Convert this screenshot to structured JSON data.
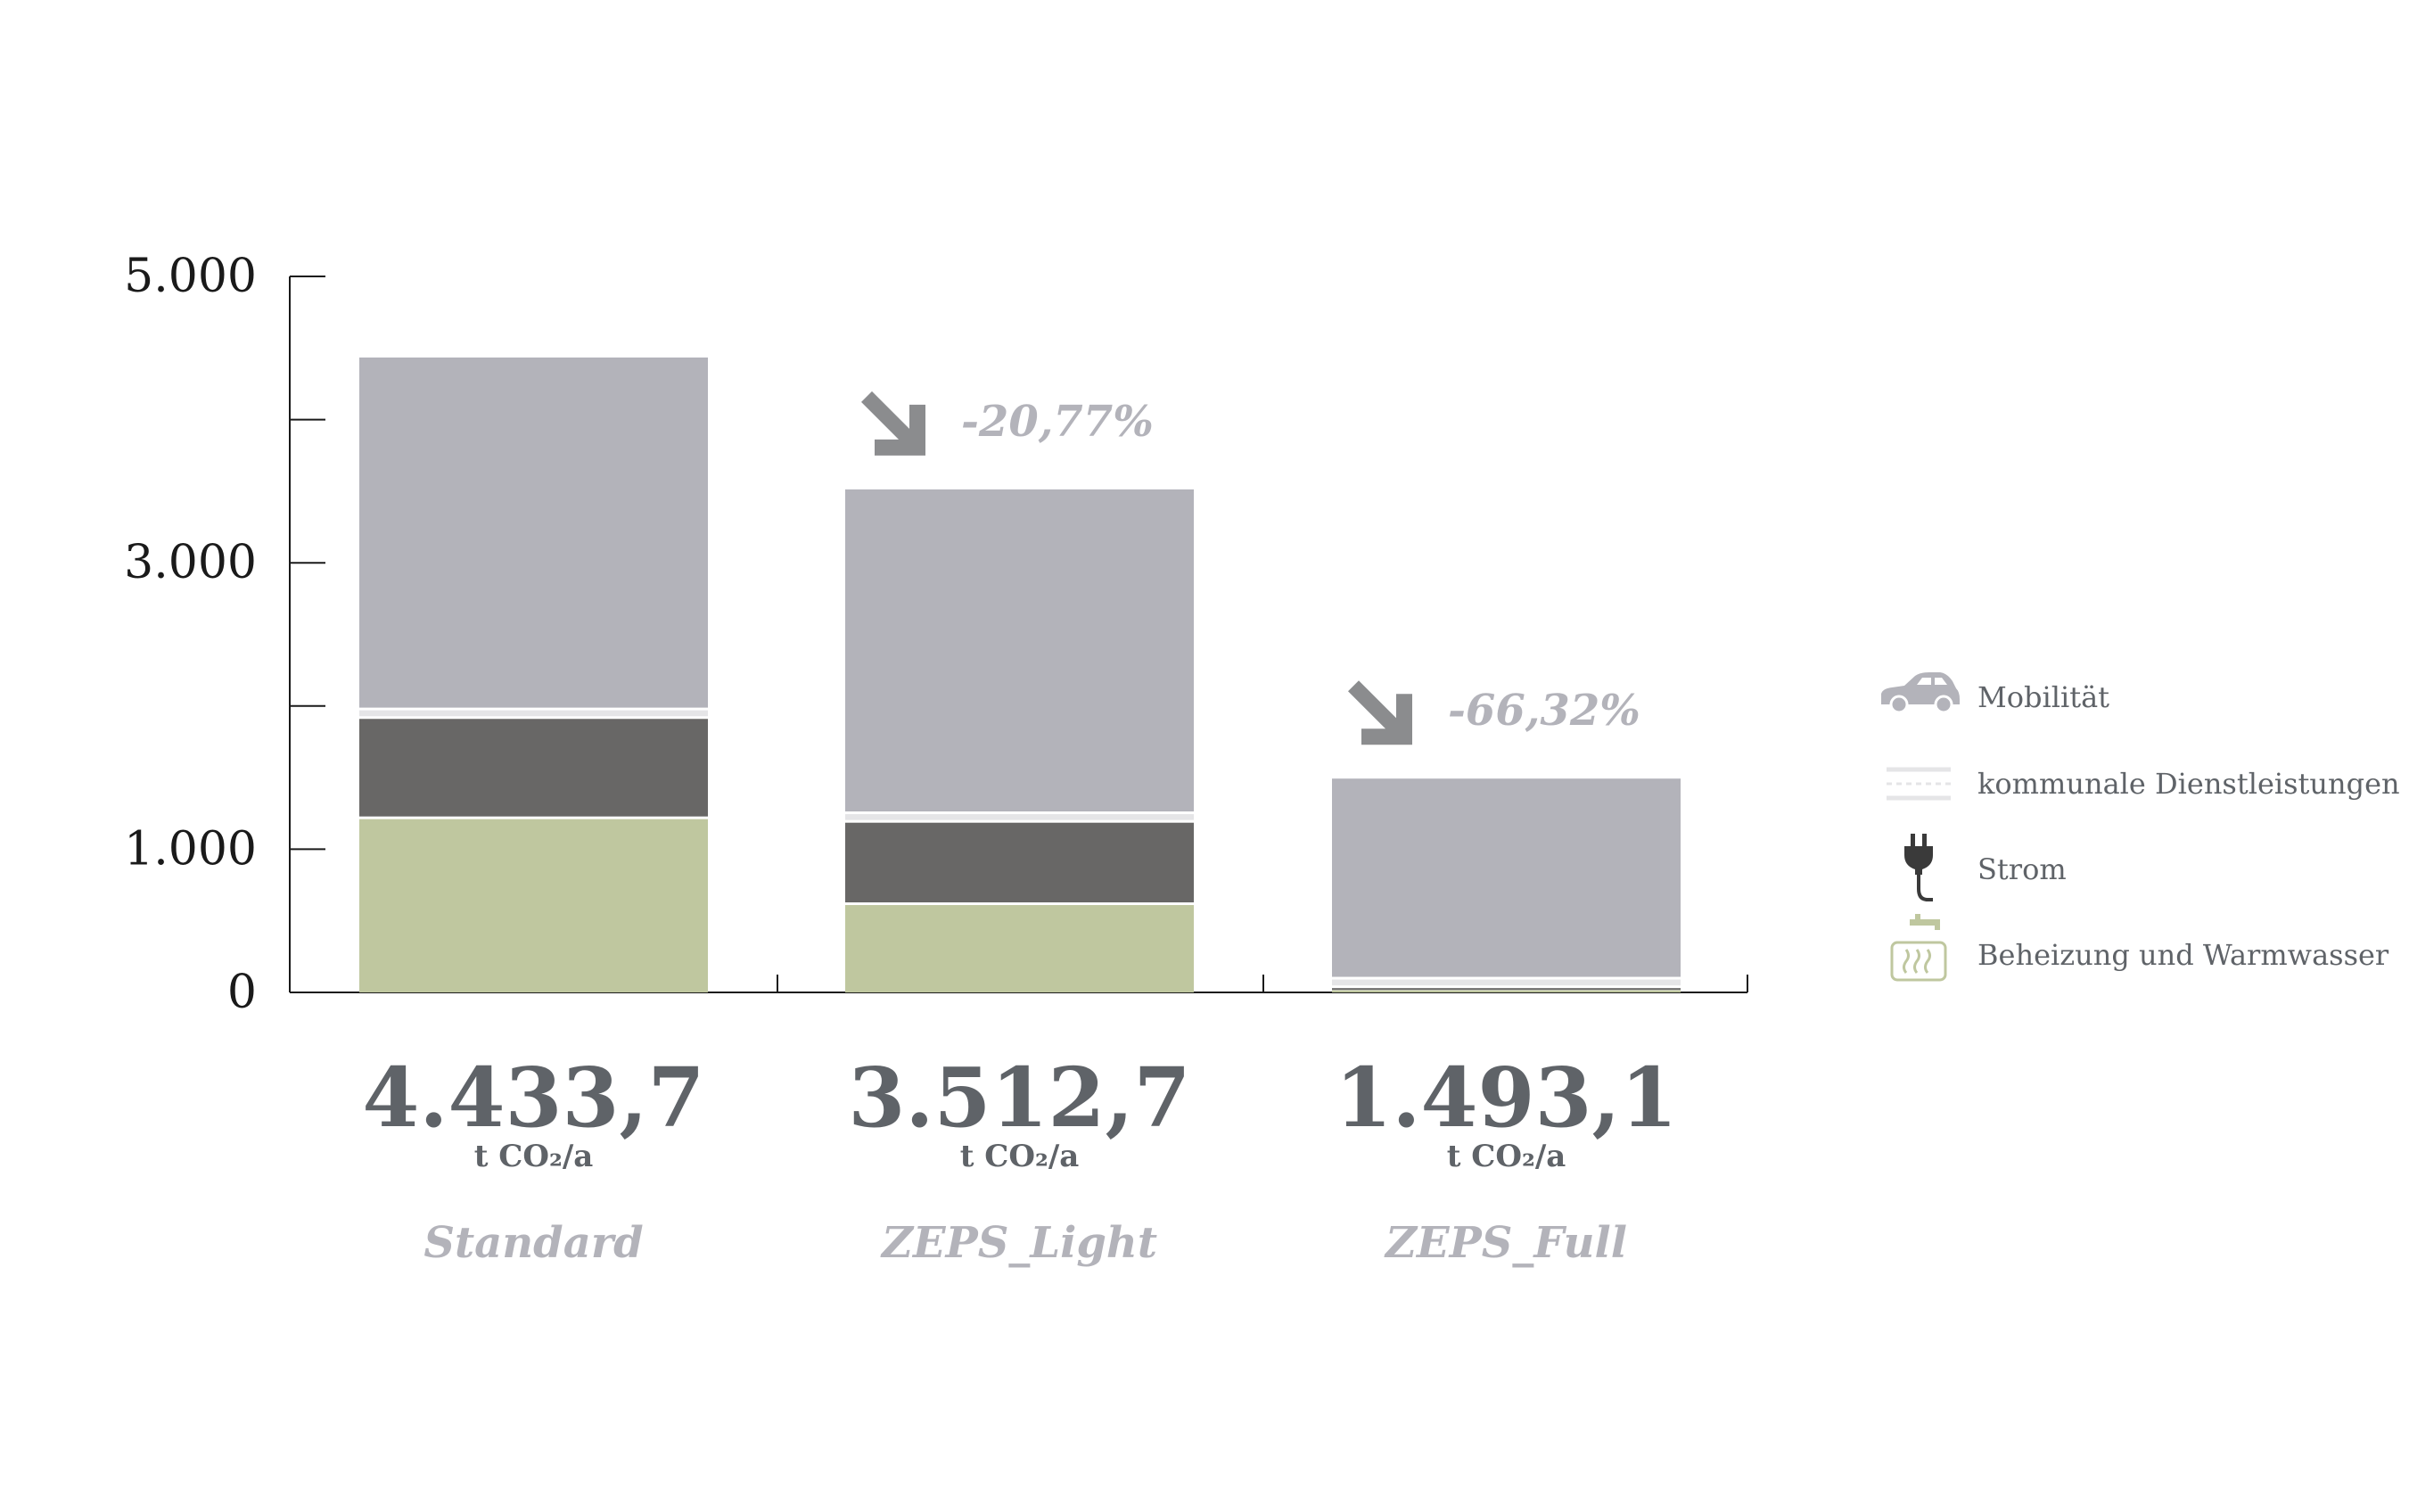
{
  "chart_data": {
    "type": "bar",
    "stacked": true,
    "categories": [
      "Standard",
      "ZEPS_Light",
      "ZEPS_Full"
    ],
    "ylim": [
      0,
      5000
    ],
    "yticks": [
      {
        "value": 0,
        "label": "0"
      },
      {
        "value": 1000,
        "label": "1.000"
      },
      {
        "value": 2000,
        "label": ""
      },
      {
        "value": 3000,
        "label": "3.000"
      },
      {
        "value": 4000,
        "label": ""
      },
      {
        "value": 5000,
        "label": "5.000"
      }
    ],
    "series": [
      {
        "name": "Beheizung und Warmwasser",
        "color": "#bfc79f",
        "values": [
          1210,
          610,
          15
        ],
        "icon": "heating-tap-icon"
      },
      {
        "name": "Strom",
        "color": "#686766",
        "values": [
          700,
          575,
          15
        ],
        "icon": "plug-icon"
      },
      {
        "name": "kommunale Dienstleistungen",
        "color": "#e5e5e7",
        "values": [
          60,
          60,
          60
        ],
        "icon": "dashed-lines-icon"
      },
      {
        "name": "Mobilität",
        "color": "#b3b3ba",
        "values": [
          2463.7,
          2267.7,
          1403.1
        ],
        "icon": "car-icon"
      }
    ],
    "totals": [
      "4.433,7",
      "3.512,7",
      "1.493,1"
    ],
    "unit": "t CO₂/a",
    "changes": [
      "",
      "-20,77%",
      "-66,32%"
    ],
    "legend_position": "right",
    "grid": false
  }
}
